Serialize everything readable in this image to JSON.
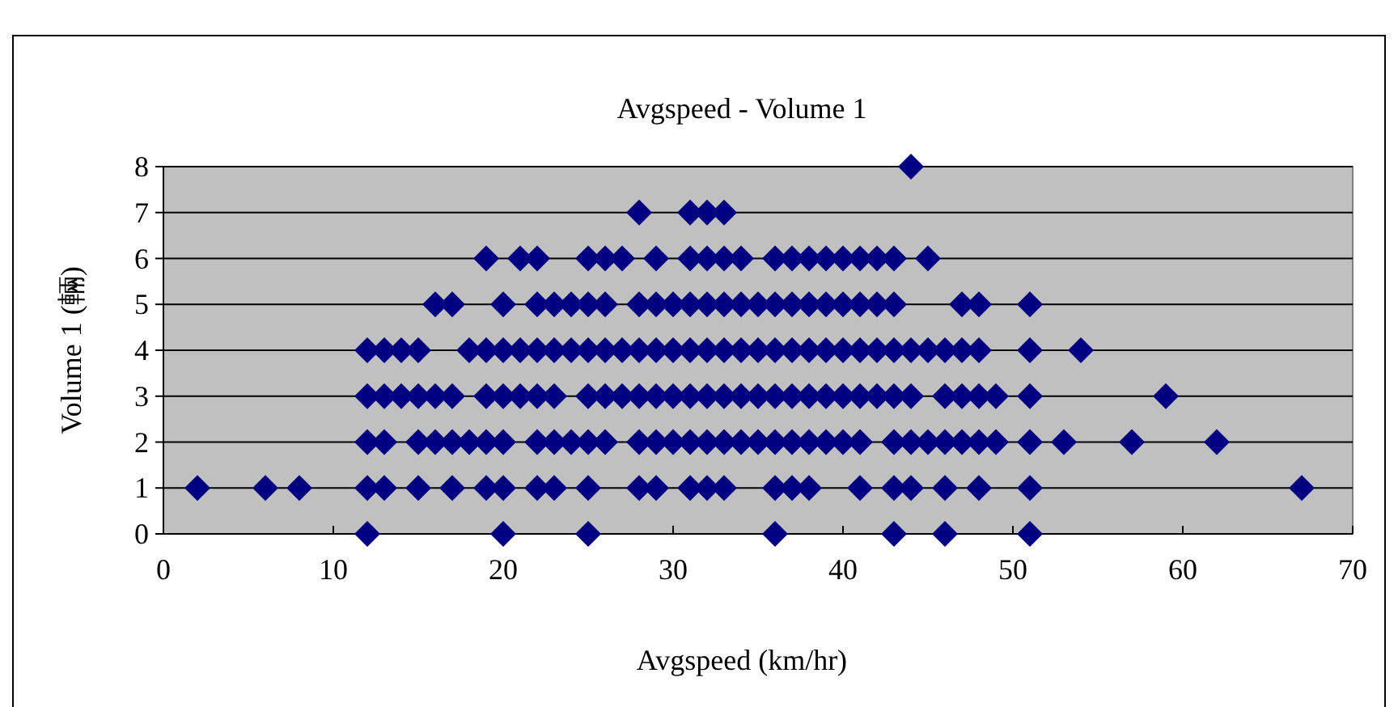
{
  "chart_data": {
    "type": "scatter",
    "title": "Avgspeed - Volume 1",
    "xlabel": "Avgspeed (km/hr)",
    "ylabel": "Volume 1 (輛)",
    "xlim": [
      0,
      70
    ],
    "xticks": [
      0,
      10,
      20,
      30,
      40,
      50,
      60,
      70
    ],
    "ylim": [
      0,
      8
    ],
    "yticks": [
      0,
      1,
      2,
      3,
      4,
      5,
      6,
      7,
      8
    ],
    "grid": "y",
    "marker": "diamond",
    "series": [
      {
        "color": "#000080",
        "x": [
          12,
          20,
          25,
          36,
          43,
          46,
          51,
          2,
          6,
          8,
          12,
          13,
          15,
          17,
          19,
          20,
          22,
          23,
          25,
          28,
          29,
          31,
          32,
          33,
          36,
          37,
          38,
          41,
          43,
          44,
          46,
          48,
          51,
          67,
          12,
          13,
          15,
          16,
          17,
          18,
          19,
          20,
          22,
          23,
          24,
          25,
          26,
          28,
          29,
          30,
          31,
          32,
          33,
          34,
          35,
          36,
          37,
          38,
          39,
          40,
          41,
          43,
          44,
          45,
          46,
          47,
          48,
          49,
          51,
          53,
          57,
          62,
          12,
          13,
          14,
          15,
          16,
          17,
          19,
          20,
          21,
          22,
          23,
          25,
          26,
          27,
          28,
          29,
          30,
          31,
          32,
          33,
          34,
          35,
          36,
          37,
          38,
          39,
          40,
          41,
          42,
          43,
          44,
          46,
          47,
          48,
          49,
          51,
          59,
          12,
          13,
          14,
          15,
          18,
          19,
          20,
          21,
          22,
          23,
          24,
          25,
          26,
          27,
          28,
          29,
          30,
          31,
          32,
          33,
          34,
          35,
          36,
          37,
          38,
          39,
          40,
          41,
          42,
          43,
          44,
          45,
          46,
          47,
          48,
          51,
          54,
          16,
          17,
          20,
          22,
          23,
          24,
          25,
          26,
          28,
          29,
          30,
          31,
          32,
          33,
          34,
          35,
          36,
          37,
          38,
          39,
          40,
          41,
          42,
          43,
          47,
          48,
          51,
          19,
          21,
          22,
          25,
          26,
          27,
          29,
          31,
          32,
          33,
          34,
          36,
          37,
          38,
          39,
          40,
          41,
          42,
          43,
          45,
          28,
          31,
          32,
          33,
          44
        ],
        "values": [
          0,
          0,
          0,
          0,
          0,
          0,
          0,
          1,
          1,
          1,
          1,
          1,
          1,
          1,
          1,
          1,
          1,
          1,
          1,
          1,
          1,
          1,
          1,
          1,
          1,
          1,
          1,
          1,
          1,
          1,
          1,
          1,
          1,
          1,
          2,
          2,
          2,
          2,
          2,
          2,
          2,
          2,
          2,
          2,
          2,
          2,
          2,
          2,
          2,
          2,
          2,
          2,
          2,
          2,
          2,
          2,
          2,
          2,
          2,
          2,
          2,
          2,
          2,
          2,
          2,
          2,
          2,
          2,
          2,
          2,
          2,
          2,
          3,
          3,
          3,
          3,
          3,
          3,
          3,
          3,
          3,
          3,
          3,
          3,
          3,
          3,
          3,
          3,
          3,
          3,
          3,
          3,
          3,
          3,
          3,
          3,
          3,
          3,
          3,
          3,
          3,
          3,
          3,
          3,
          3,
          3,
          3,
          3,
          3,
          4,
          4,
          4,
          4,
          4,
          4,
          4,
          4,
          4,
          4,
          4,
          4,
          4,
          4,
          4,
          4,
          4,
          4,
          4,
          4,
          4,
          4,
          4,
          4,
          4,
          4,
          4,
          4,
          4,
          4,
          4,
          4,
          4,
          4,
          4,
          4,
          4,
          5,
          5,
          5,
          5,
          5,
          5,
          5,
          5,
          5,
          5,
          5,
          5,
          5,
          5,
          5,
          5,
          5,
          5,
          5,
          5,
          5,
          5,
          5,
          5,
          5,
          5,
          5,
          6,
          6,
          6,
          6,
          6,
          6,
          6,
          6,
          6,
          6,
          6,
          6,
          6,
          6,
          6,
          6,
          6,
          6,
          6,
          6,
          7,
          7,
          7,
          7,
          8
        ]
      }
    ]
  }
}
